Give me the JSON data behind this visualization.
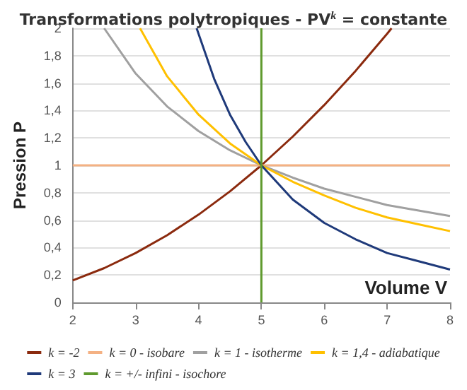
{
  "chart_data": {
    "type": "line",
    "title": "Transformations polytropiques - PV$^{k}$ = constante",
    "xlabel": "Volume V",
    "ylabel": "Pression P",
    "xlim": [
      2,
      8
    ],
    "xticks": [
      2,
      3,
      4,
      5,
      6,
      7,
      8
    ],
    "ylim": [
      0,
      2
    ],
    "yticks": [
      0,
      {
        "value": 0.2,
        "label": "0,2"
      },
      {
        "value": 0.4,
        "label": "0,4"
      },
      {
        "value": 0.6,
        "label": "0,6"
      },
      {
        "value": 0.8,
        "label": "0,8"
      },
      1,
      {
        "value": 1.2,
        "label": "1,2"
      },
      {
        "value": 1.4,
        "label": "1,4"
      },
      {
        "value": 1.6,
        "label": "1,6"
      },
      {
        "value": 1.8,
        "label": "1,8"
      },
      2
    ],
    "grid": "y",
    "legend": "bottom",
    "marker": "none",
    "line_style": "solid",
    "series": [
      {
        "name": "k = -2",
        "color": "#8b2a0e",
        "x": [
          2,
          2.5,
          3,
          3.5,
          4,
          4.5,
          5,
          5.5,
          6,
          6.5,
          7,
          7.07
        ],
        "values": [
          0.16,
          0.25,
          0.36,
          0.49,
          0.64,
          0.81,
          1,
          1.21,
          1.44,
          1.69,
          1.96,
          2
        ]
      },
      {
        "name": "k = 0 - isobare",
        "color": "#f4b183",
        "x": [
          2,
          8
        ],
        "values": [
          1,
          1
        ]
      },
      {
        "name": "k = 1 - isotherme",
        "color": "#a0a0a0",
        "x": [
          2.5,
          3,
          3.5,
          4,
          4.5,
          5,
          5.5,
          6,
          6.5,
          7,
          7.5,
          8
        ],
        "values": [
          2,
          1.67,
          1.43,
          1.25,
          1.11,
          1,
          0.91,
          0.83,
          0.77,
          0.71,
          0.67,
          0.63
        ]
      },
      {
        "name": "k = 1,4 - adiabatique",
        "color": "#ffc000",
        "x": [
          3.07,
          3.5,
          4,
          4.5,
          5,
          5.5,
          6,
          6.5,
          7,
          7.5,
          8
        ],
        "values": [
          2,
          1.65,
          1.37,
          1.16,
          1,
          0.88,
          0.78,
          0.69,
          0.62,
          0.57,
          0.52
        ]
      },
      {
        "name": "k = 3",
        "color": "#1f3a7a",
        "x": [
          3.97,
          4.25,
          4.5,
          4.75,
          5,
          5.5,
          6,
          6.5,
          7,
          7.5,
          8
        ],
        "values": [
          2,
          1.63,
          1.37,
          1.17,
          1,
          0.75,
          0.58,
          0.46,
          0.36,
          0.3,
          0.24
        ]
      },
      {
        "name": "k = +/- infini - isochore",
        "color": "#5f9a2e",
        "x": [
          5,
          5
        ],
        "values": [
          0,
          2
        ]
      }
    ]
  }
}
